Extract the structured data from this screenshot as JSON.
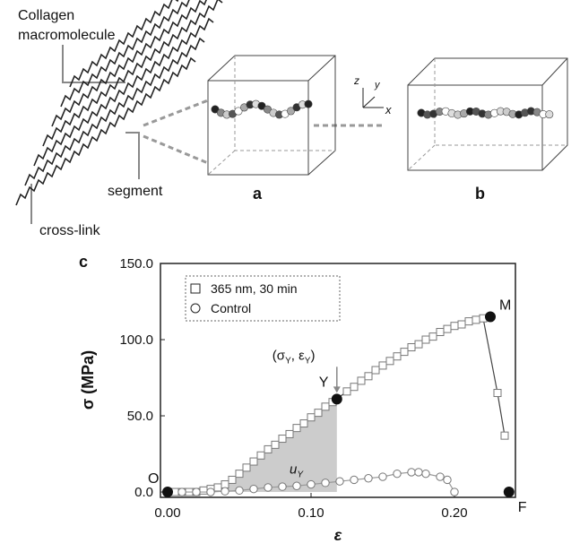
{
  "diagram": {
    "molecule_label": [
      "Collagen",
      "macromolecule"
    ],
    "segment_label": "segment",
    "crosslink_label": "cross-link",
    "panel_a": "a",
    "panel_b": "b",
    "axis_z": "z",
    "axis_y": "y",
    "axis_x": "x"
  },
  "chart_data": {
    "type": "scatter",
    "panel_label": "c",
    "x_label": "ε",
    "y_label": "σ (MPa)",
    "xlim": [
      -0.005,
      0.2425
    ],
    "ylim": [
      -3.5,
      150
    ],
    "xticks": [
      {
        "value": 0,
        "label": "0.00"
      },
      {
        "value": 0.1,
        "label": "0.10"
      },
      {
        "value": 0.2,
        "label": "0.20"
      }
    ],
    "yticks": [
      {
        "value": 0,
        "label": "0.0"
      },
      {
        "value": 50,
        "label": "50.0"
      },
      {
        "value": 100,
        "label": "100.0"
      },
      {
        "value": 150,
        "label": "150.0"
      }
    ],
    "legend": "upper left",
    "series": [
      {
        "name": "365 nm, 30 min",
        "marker": "square",
        "color": "#777777",
        "x": [
          0.005,
          0.01,
          0.015,
          0.02,
          0.025,
          0.03,
          0.035,
          0.04,
          0.045,
          0.05,
          0.055,
          0.06,
          0.065,
          0.07,
          0.075,
          0.08,
          0.085,
          0.09,
          0.095,
          0.1,
          0.105,
          0.11,
          0.115,
          0.125,
          0.13,
          0.135,
          0.14,
          0.145,
          0.15,
          0.155,
          0.16,
          0.165,
          0.17,
          0.175,
          0.18,
          0.185,
          0.19,
          0.195,
          0.2,
          0.205,
          0.21,
          0.215,
          0.22,
          0.23,
          0.235
        ],
        "values": [
          0,
          0,
          0,
          0,
          1,
          2,
          3,
          5,
          8,
          12,
          16,
          20,
          24,
          28,
          31,
          35,
          38,
          42,
          45,
          49,
          52,
          56,
          59,
          66,
          69,
          73,
          76,
          80,
          83,
          86,
          89,
          92,
          95,
          97,
          100,
          102,
          105,
          107,
          109,
          110,
          112,
          113,
          114,
          65,
          37
        ]
      },
      {
        "name": "Control",
        "marker": "circle",
        "color": "#777777",
        "x": [
          0.01,
          0.02,
          0.03,
          0.04,
          0.05,
          0.06,
          0.07,
          0.08,
          0.09,
          0.1,
          0.11,
          0.12,
          0.13,
          0.14,
          0.15,
          0.16,
          0.17,
          0.175,
          0.18,
          0.19,
          0.195,
          0.2
        ],
        "values": [
          0,
          0,
          0,
          0.5,
          1,
          2,
          3,
          3.5,
          4,
          5,
          6,
          7,
          8,
          9,
          10,
          12,
          13,
          13,
          12,
          10,
          8,
          0
        ]
      }
    ],
    "points": [
      {
        "label": "O",
        "x": 0,
        "y": 0
      },
      {
        "label": "Y",
        "x": 0.118,
        "y": 61
      },
      {
        "label": "M",
        "x": 0.225,
        "y": 115
      },
      {
        "label": "F",
        "x": 0.238,
        "y": 0
      }
    ],
    "yield_annotation": [
      "(σ",
      "Y",
      ", ε",
      "Y",
      ")"
    ],
    "area_label": [
      "u",
      "Y"
    ],
    "area_color": "#cccccc"
  }
}
